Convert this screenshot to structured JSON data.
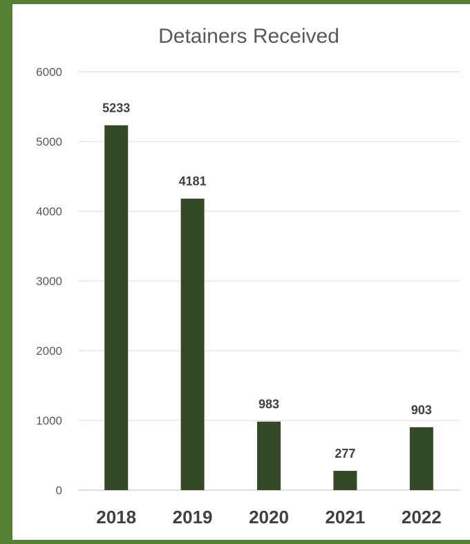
{
  "chart_data": {
    "type": "bar",
    "title": "Detainers Received",
    "categories": [
      "2018",
      "2019",
      "2020",
      "2021",
      "2022"
    ],
    "values": [
      5233,
      4181,
      983,
      277,
      903
    ],
    "ylim": [
      0,
      6000
    ],
    "yticks": [
      0,
      1000,
      2000,
      3000,
      4000,
      5000,
      6000
    ],
    "grid": true,
    "data_labels": true,
    "bar_color": "#344a27",
    "frame_color": "#558033"
  }
}
